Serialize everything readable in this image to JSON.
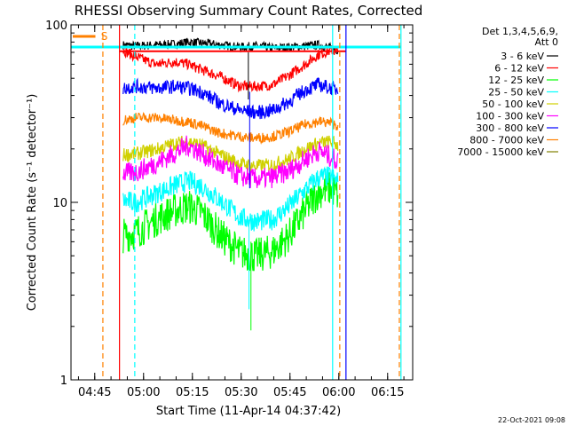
{
  "chart_data": {
    "type": "line",
    "title": "RHESSI Observing Summary Count Rates, Corrected",
    "xlabel": "Start Time (11-Apr-14 04:37:42)",
    "ylabel": "Corrected Count Rate (s⁻¹ detector⁻¹)",
    "y_scale": "log",
    "ylim": [
      1,
      100
    ],
    "xlim_minutes": [
      0,
      105
    ],
    "x_ticks": [
      {
        "label": "04:45",
        "minute": 7.3
      },
      {
        "label": "05:00",
        "minute": 22.3
      },
      {
        "label": "05:15",
        "minute": 37.3
      },
      {
        "label": "05:30",
        "minute": 52.3
      },
      {
        "label": "05:45",
        "minute": 67.3
      },
      {
        "label": "06:00",
        "minute": 82.3
      },
      {
        "label": "06:15",
        "minute": 97.3
      }
    ],
    "y_ticks": [
      {
        "label": "1",
        "value": 1
      },
      {
        "label": "10",
        "value": 10
      },
      {
        "label": "100",
        "value": 100
      }
    ],
    "x_minutes": [
      16,
      20,
      26,
      32,
      36,
      40,
      46,
      52,
      57,
      62,
      67,
      72,
      76,
      80,
      82
    ],
    "series": [
      {
        "name": "3 - 6 keV",
        "color": "#000000",
        "values": [
          77,
          76,
          77,
          78,
          80,
          79,
          77,
          75,
          76,
          74,
          75,
          76,
          77,
          74,
          72
        ]
      },
      {
        "name": "6 - 12 keV",
        "color": "#ff0000",
        "values": [
          72,
          66,
          60,
          62,
          60,
          56,
          51,
          45,
          45,
          46,
          52,
          60,
          68,
          72,
          70
        ]
      },
      {
        "name": "12 - 25 keV",
        "color": "#00ff00",
        "values": [
          6.5,
          6.8,
          8.0,
          9.0,
          9.5,
          8.8,
          6.5,
          5.2,
          5.0,
          5.3,
          6.5,
          9.0,
          11.5,
          12.0,
          11.0
        ]
      },
      {
        "name": "25 - 50 keV",
        "color": "#00ffff",
        "values": [
          10.2,
          10.0,
          11.2,
          12.5,
          13.2,
          12.4,
          10.2,
          8.2,
          7.8,
          8.0,
          9.5,
          11.8,
          13.8,
          14.0,
          13.0
        ]
      },
      {
        "name": "50 - 100 keV",
        "color": "#d0d000",
        "values": [
          18.5,
          18.8,
          19.8,
          21.5,
          22.0,
          21.0,
          18.5,
          16.5,
          16.0,
          16.3,
          17.5,
          20.0,
          21.5,
          22.0,
          21.0
        ]
      },
      {
        "name": "100 - 300 keV",
        "color": "#ff00ff",
        "values": [
          14.5,
          14.8,
          16.5,
          19.0,
          21.0,
          19.0,
          16.0,
          14.0,
          13.5,
          13.8,
          15.0,
          17.5,
          19.5,
          18.0,
          17.0
        ]
      },
      {
        "name": "300 - 800 keV",
        "color": "#0000ff",
        "values": [
          44,
          45,
          44,
          45,
          44,
          42,
          36,
          33,
          32,
          33,
          37,
          43,
          46,
          44,
          43
        ]
      },
      {
        "name": "800 - 7000 keV",
        "color": "#ff8000",
        "values": [
          29,
          30,
          30,
          29,
          28.5,
          27,
          24.5,
          23.5,
          23,
          23.5,
          25,
          27.5,
          28.5,
          28,
          27
        ]
      },
      {
        "name": "7000 - 15000 keV",
        "color": "#808000",
        "values": []
      }
    ],
    "legend": {
      "header_line1": "Det 1,3,4,5,6,9,",
      "header_line2": "Att 0",
      "placement": "top-right"
    },
    "annotations": {
      "s_flag_label": "S",
      "s_flag_color": "#ff8000"
    },
    "vertical_markers": [
      {
        "minute": 9.8,
        "style": "dashed",
        "color": "#ff8000"
      },
      {
        "minute": 14.9,
        "style": "solid",
        "color": "#ff0000"
      },
      {
        "minute": 19.6,
        "style": "dashed",
        "color": "#00ffff"
      },
      {
        "minute": 80.4,
        "style": "solid",
        "color": "#00ffff"
      },
      {
        "minute": 82.6,
        "style": "dashed",
        "color": "#ff8000"
      },
      {
        "minute": 84.5,
        "style": "solid",
        "color": "#0000ff"
      },
      {
        "minute": 100.9,
        "style": "dashed",
        "color": "#ff8000"
      },
      {
        "minute": 101.4,
        "style": "solid",
        "color": "#00ffff"
      }
    ],
    "top_band": {
      "minute_start": 0,
      "minute_end": 101.4,
      "value": 75,
      "color": "#00ffff"
    },
    "grid": false
  },
  "footer": {
    "timestamp": "22-Oct-2021 09:08"
  }
}
